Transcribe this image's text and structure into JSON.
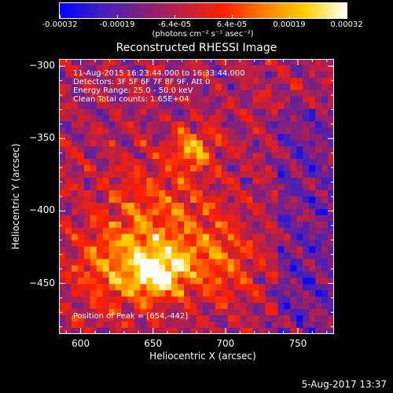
{
  "colorbar": {
    "tick_labels": [
      "-0.00032",
      "-0.00019",
      "-6.4e-05",
      "6.4e-05",
      "0.00019",
      "0.00032"
    ],
    "unit_label": "(photons cm⁻² s⁻¹ asec⁻²)",
    "colors": [
      "#0000ff",
      "#4020c0",
      "#802080",
      "#c02040",
      "#ff2000",
      "#ff8000",
      "#ffd000",
      "#ffffff"
    ]
  },
  "chart_data": {
    "type": "heatmap",
    "title": "Reconstructed RHESSI Image",
    "xlabel": "Heliocentric X (arcsec)",
    "ylabel": "Heliocentric Y (arcsec)",
    "xlim": [
      585,
      775
    ],
    "ylim": [
      -485,
      -295
    ],
    "xticks": [
      600,
      650,
      700,
      750
    ],
    "yticks": [
      -300,
      -350,
      -400,
      -450
    ],
    "xtick_labels": [
      "600",
      "650",
      "700",
      "750"
    ],
    "ytick_labels": [
      "−300",
      "−350",
      "−400",
      "−450"
    ],
    "value_range": [
      -0.00032,
      0.00032
    ],
    "peak": {
      "x": 654,
      "y": -442
    },
    "annotations": [
      "11-Aug-2015 16:23:44.000 to 16:33:44.000",
      "Detectors: 3F 5F 6F 7F 8F 9F, Att 0",
      "Energy Range: 25.0 - 50.0 keV",
      "Clean     Total counts: 1.65E+04"
    ],
    "peak_label": "Position of Peak = [654,-442]"
  },
  "timestamp": "5-Aug-2017 13:37"
}
